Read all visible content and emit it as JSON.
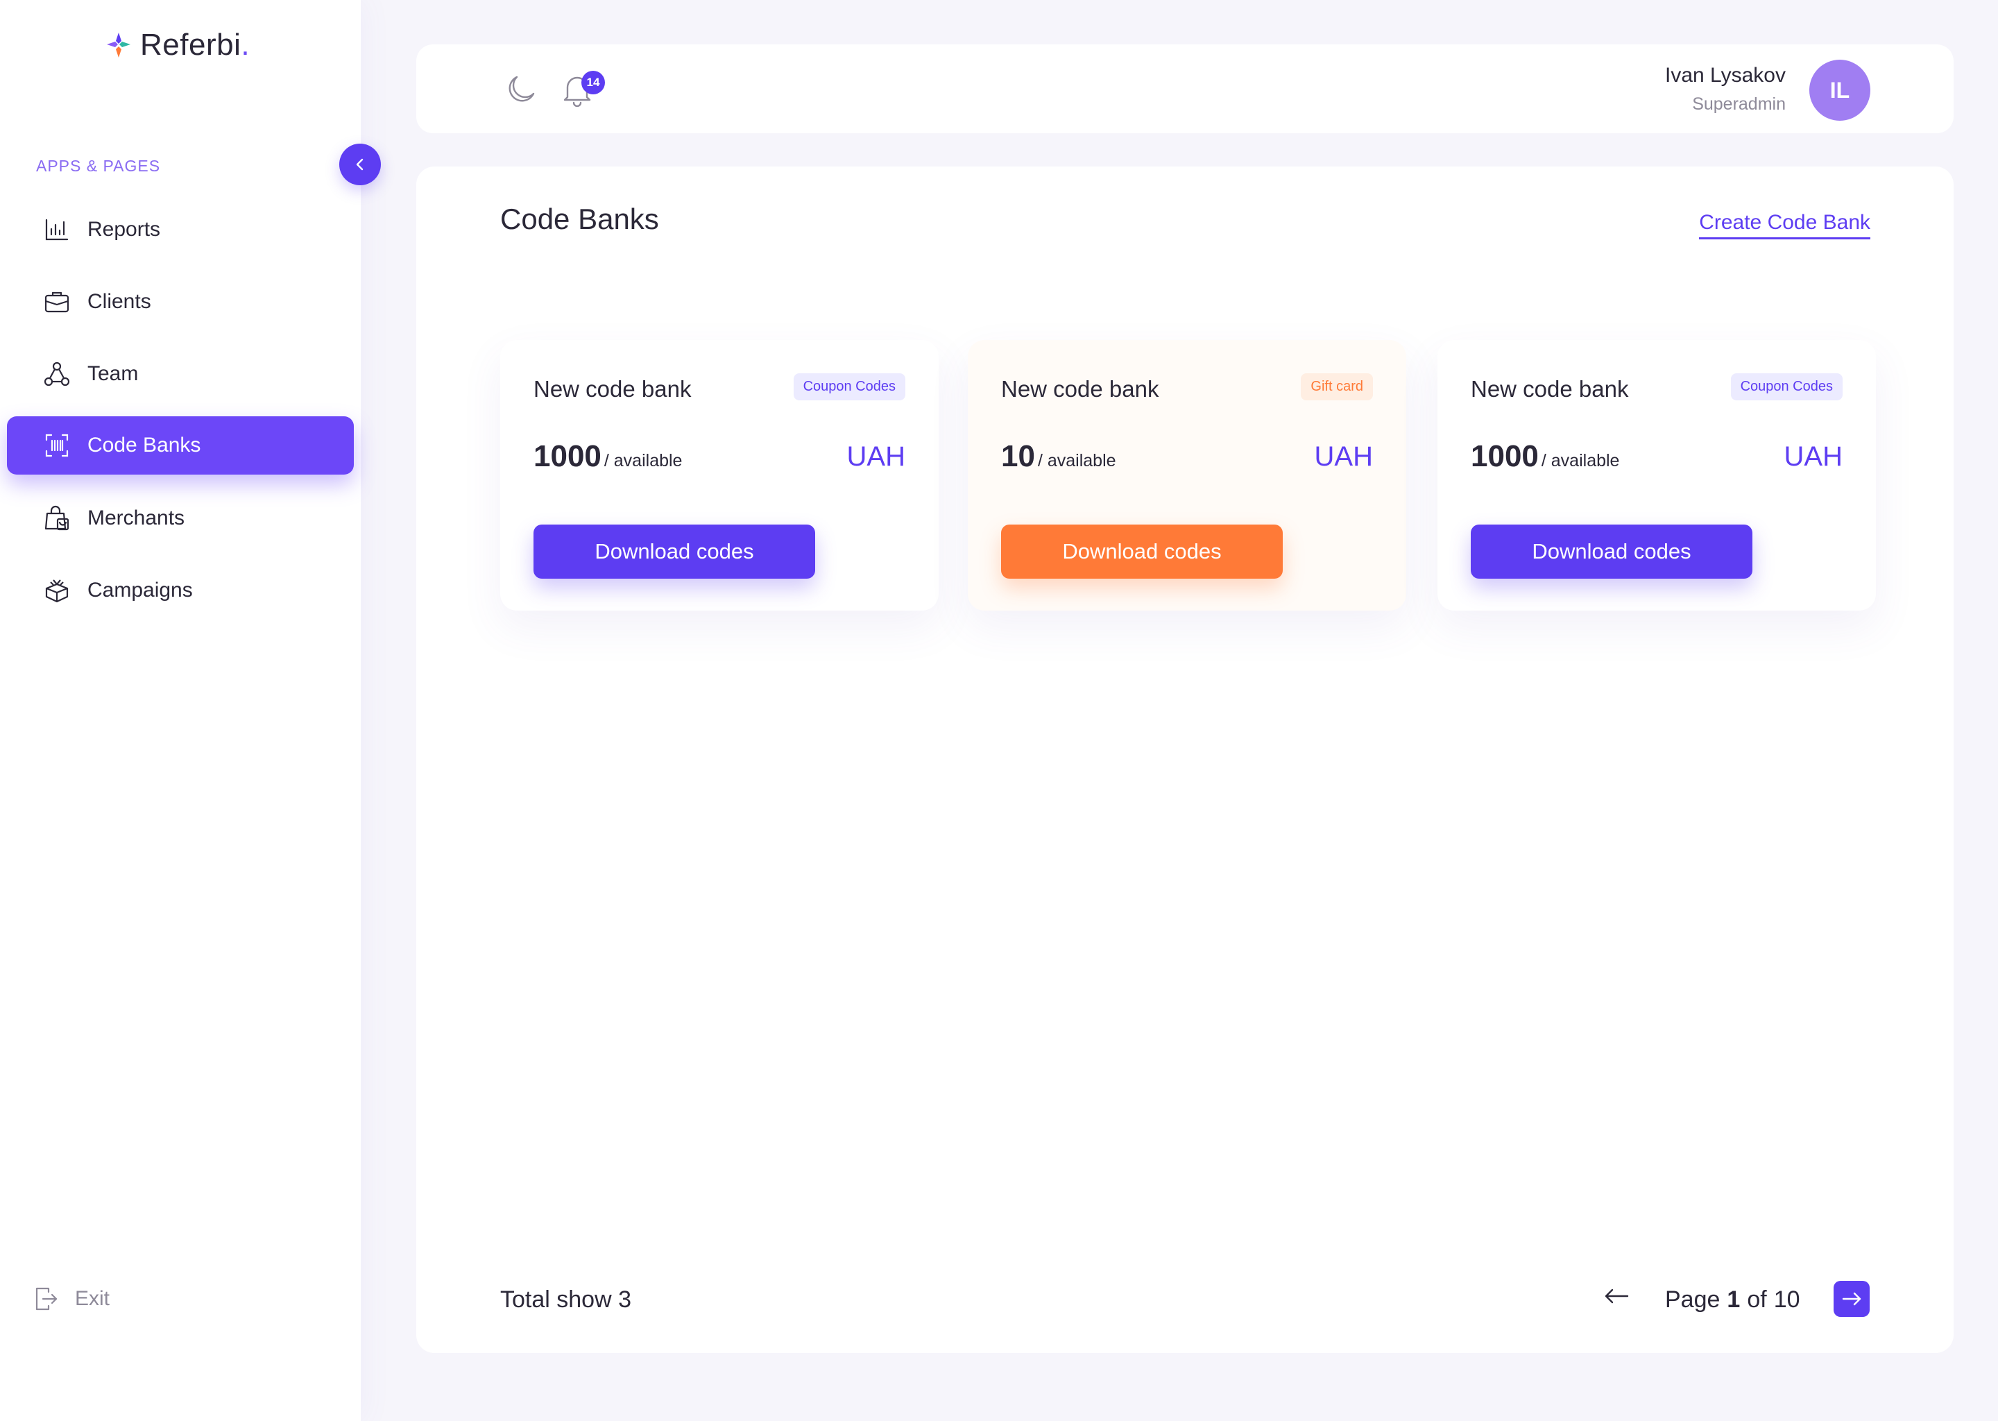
{
  "app": {
    "logo_text": "Referbi",
    "logo_dot": ".",
    "brand_color": "#5d3df2",
    "accent_orange": "#ff7a37"
  },
  "sidebar": {
    "section_label": "APPS & PAGES",
    "collapse_icon": "chevron-left-icon",
    "items": [
      {
        "label": "Reports",
        "icon": "bar-chart-icon",
        "active": false
      },
      {
        "label": "Clients",
        "icon": "briefcase-icon",
        "active": false
      },
      {
        "label": "Team",
        "icon": "team-network-icon",
        "active": false
      },
      {
        "label": "Code Banks",
        "icon": "barcode-scan-icon",
        "active": true
      },
      {
        "label": "Merchants",
        "icon": "shopping-bag-icon",
        "active": false
      },
      {
        "label": "Campaigns",
        "icon": "gift-box-icon",
        "active": false
      }
    ],
    "exit_label": "Exit"
  },
  "header": {
    "theme_icon": "moon-icon",
    "notifications_icon": "bell-icon",
    "notification_count": "14",
    "user_name": "Ivan Lysakov",
    "user_role": "Superadmin",
    "avatar_initials": "IL"
  },
  "main": {
    "title": "Code Banks",
    "create_link": "Create Code Bank",
    "cards": [
      {
        "name": "New code bank",
        "tag": "Coupon Codes",
        "tag_type": "coupon",
        "count": "1000",
        "count_label": "/ available",
        "currency": "UAH",
        "button": "Download codes"
      },
      {
        "name": "New code bank",
        "tag": "Gift card",
        "tag_type": "gift",
        "count": "10",
        "count_label": "/ available",
        "currency": "UAH",
        "button": "Download codes"
      },
      {
        "name": "New code bank",
        "tag": "Coupon Codes",
        "tag_type": "coupon",
        "count": "1000",
        "count_label": "/ available",
        "currency": "UAH",
        "button": "Download codes"
      }
    ],
    "footer": {
      "total": "Total show 3",
      "page_word": "Page",
      "current_page": "1",
      "of_word": "of",
      "total_pages": "10"
    }
  }
}
